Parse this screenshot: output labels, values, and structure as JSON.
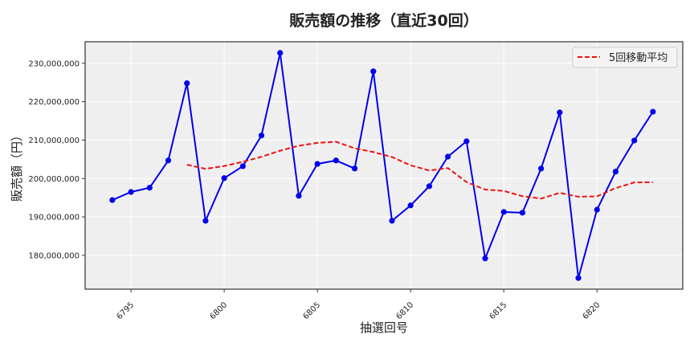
{
  "chart_data": {
    "type": "line",
    "title": "販売額の推移（直近30回）",
    "xlabel": "抽選回号",
    "ylabel": "販売額（円）",
    "x": [
      6794,
      6795,
      6796,
      6797,
      6798,
      6799,
      6800,
      6801,
      6802,
      6803,
      6804,
      6805,
      6806,
      6807,
      6808,
      6809,
      6810,
      6811,
      6812,
      6813,
      6814,
      6815,
      6816,
      6817,
      6818,
      6819,
      6820,
      6821,
      6822,
      6823
    ],
    "series": [
      {
        "name": "販売額",
        "color": "#0000ee",
        "style": "solid-markers",
        "values": [
          194400000,
          196500000,
          197600000,
          204700000,
          224800000,
          189000000,
          200100000,
          203200000,
          211200000,
          232700000,
          195500000,
          203800000,
          204700000,
          202600000,
          227900000,
          189000000,
          193000000,
          198000000,
          205700000,
          209700000,
          179200000,
          191300000,
          191100000,
          202600000,
          217200000,
          174100000,
          191900000,
          201800000,
          209900000,
          217400000
        ]
      },
      {
        "name": "5回移動平均",
        "color": "#ee1111",
        "style": "dashed",
        "window": 5
      }
    ],
    "xticks": [
      6795,
      6800,
      6805,
      6810,
      6815,
      6820
    ],
    "yticks": [
      180000000,
      190000000,
      200000000,
      210000000,
      220000000,
      230000000
    ],
    "ytick_labels": [
      "180,000,000",
      "190,000,000",
      "200,000,000",
      "210,000,000",
      "220,000,000",
      "230,000,000"
    ],
    "xlim": [
      6792.54,
      6824.6
    ],
    "ylim": [
      171200000,
      235600000
    ],
    "grid": true,
    "legend": {
      "position": "top-right",
      "entries": [
        "5回移動平均"
      ]
    }
  }
}
